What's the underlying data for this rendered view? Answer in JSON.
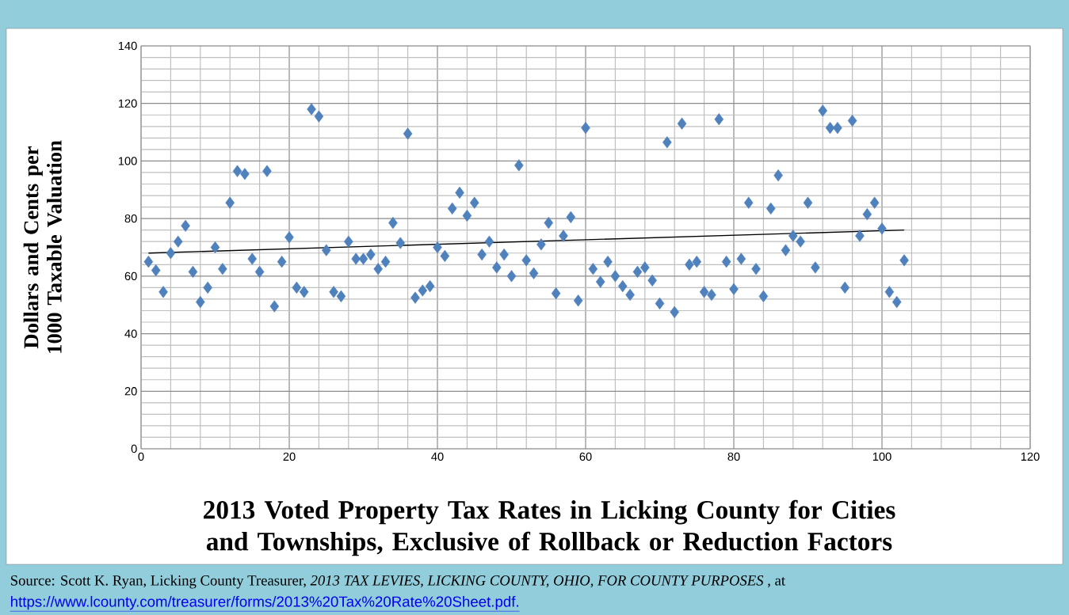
{
  "chart_data": {
    "type": "scatter",
    "title": "2013 Voted Property Tax Rates in Licking County for Cities and Townships, Exclusive of Rollback or Reduction Factors",
    "ylabel": "Dollars and Cents per 1000 Taxable Valuation",
    "annotations": [
      "Source:  Scott K.  Ryan, Licking County Treasurer, *2013 TAX LEVIES, LICKING COUNTY, OHIO, FOR COUNTY  PURPOSES* , at",
      "https://www.lcounty.com/treasurer/forms/2013%20Tax%20Rate%20Sheet.pdf."
    ],
    "xlim": [
      0,
      120
    ],
    "ylim": [
      0,
      140
    ],
    "xticks": [
      0,
      20,
      40,
      60,
      80,
      100,
      120
    ],
    "yticks": [
      0,
      20,
      40,
      60,
      80,
      100,
      120,
      140
    ],
    "grid": true,
    "series": [
      {
        "marker": "diamond",
        "color": "#4f81bd",
        "x": [
          1,
          2,
          3,
          4,
          5,
          6,
          7,
          8,
          9,
          10,
          11,
          12,
          13,
          14,
          15,
          16,
          17,
          18,
          19,
          20,
          21,
          22,
          23,
          24,
          25,
          26,
          27,
          28,
          29,
          30,
          31,
          32,
          33,
          34,
          35,
          36,
          37,
          38,
          39,
          40,
          41,
          42,
          43,
          44,
          45,
          46,
          47,
          48,
          49,
          50,
          51,
          52,
          53,
          54,
          55,
          56,
          57,
          58,
          59,
          60,
          61,
          62,
          63,
          64,
          65,
          66,
          67,
          68,
          69,
          70,
          71,
          72,
          73,
          74,
          75,
          76,
          77,
          78,
          79,
          80,
          81,
          82,
          83,
          84,
          85,
          86,
          87,
          88,
          89,
          90,
          91,
          92,
          93,
          94,
          95,
          96,
          97,
          98,
          99,
          100,
          101,
          102,
          103
        ],
        "values": [
          65,
          62,
          54.5,
          68,
          72,
          77.5,
          61.5,
          51,
          56,
          70,
          62.5,
          85.5,
          96.5,
          95.5,
          66,
          61.5,
          96.5,
          49.5,
          65,
          73.5,
          56,
          54.5,
          118,
          115.5,
          69,
          54.5,
          53,
          72,
          66,
          66,
          67.5,
          62.5,
          65,
          78.5,
          71.5,
          109.5,
          52.5,
          55,
          56.5,
          70,
          67,
          83.5,
          89,
          81,
          85.5,
          67.5,
          72,
          63,
          67.5,
          60,
          98.5,
          65.5,
          61,
          71,
          78.5,
          54,
          74,
          80.5,
          51.5,
          111.5,
          62.5,
          58,
          65,
          60,
          56.5,
          53.5,
          61.5,
          63,
          58.5,
          50.5,
          106.5,
          47.5,
          113,
          64,
          65,
          54.5,
          53.5,
          114.5,
          65,
          55.5,
          66,
          85.5,
          62.5,
          53,
          83.5,
          95,
          69,
          74,
          72,
          85.5,
          63,
          117.5,
          111.5,
          111.5,
          56,
          114,
          74,
          81.5,
          85.5,
          76.5,
          54.5,
          51,
          65.5
        ]
      },
      {
        "type": "line",
        "marker": "none",
        "color": "#000000",
        "x": [
          1,
          103
        ],
        "values": [
          68,
          76
        ]
      }
    ]
  }
}
